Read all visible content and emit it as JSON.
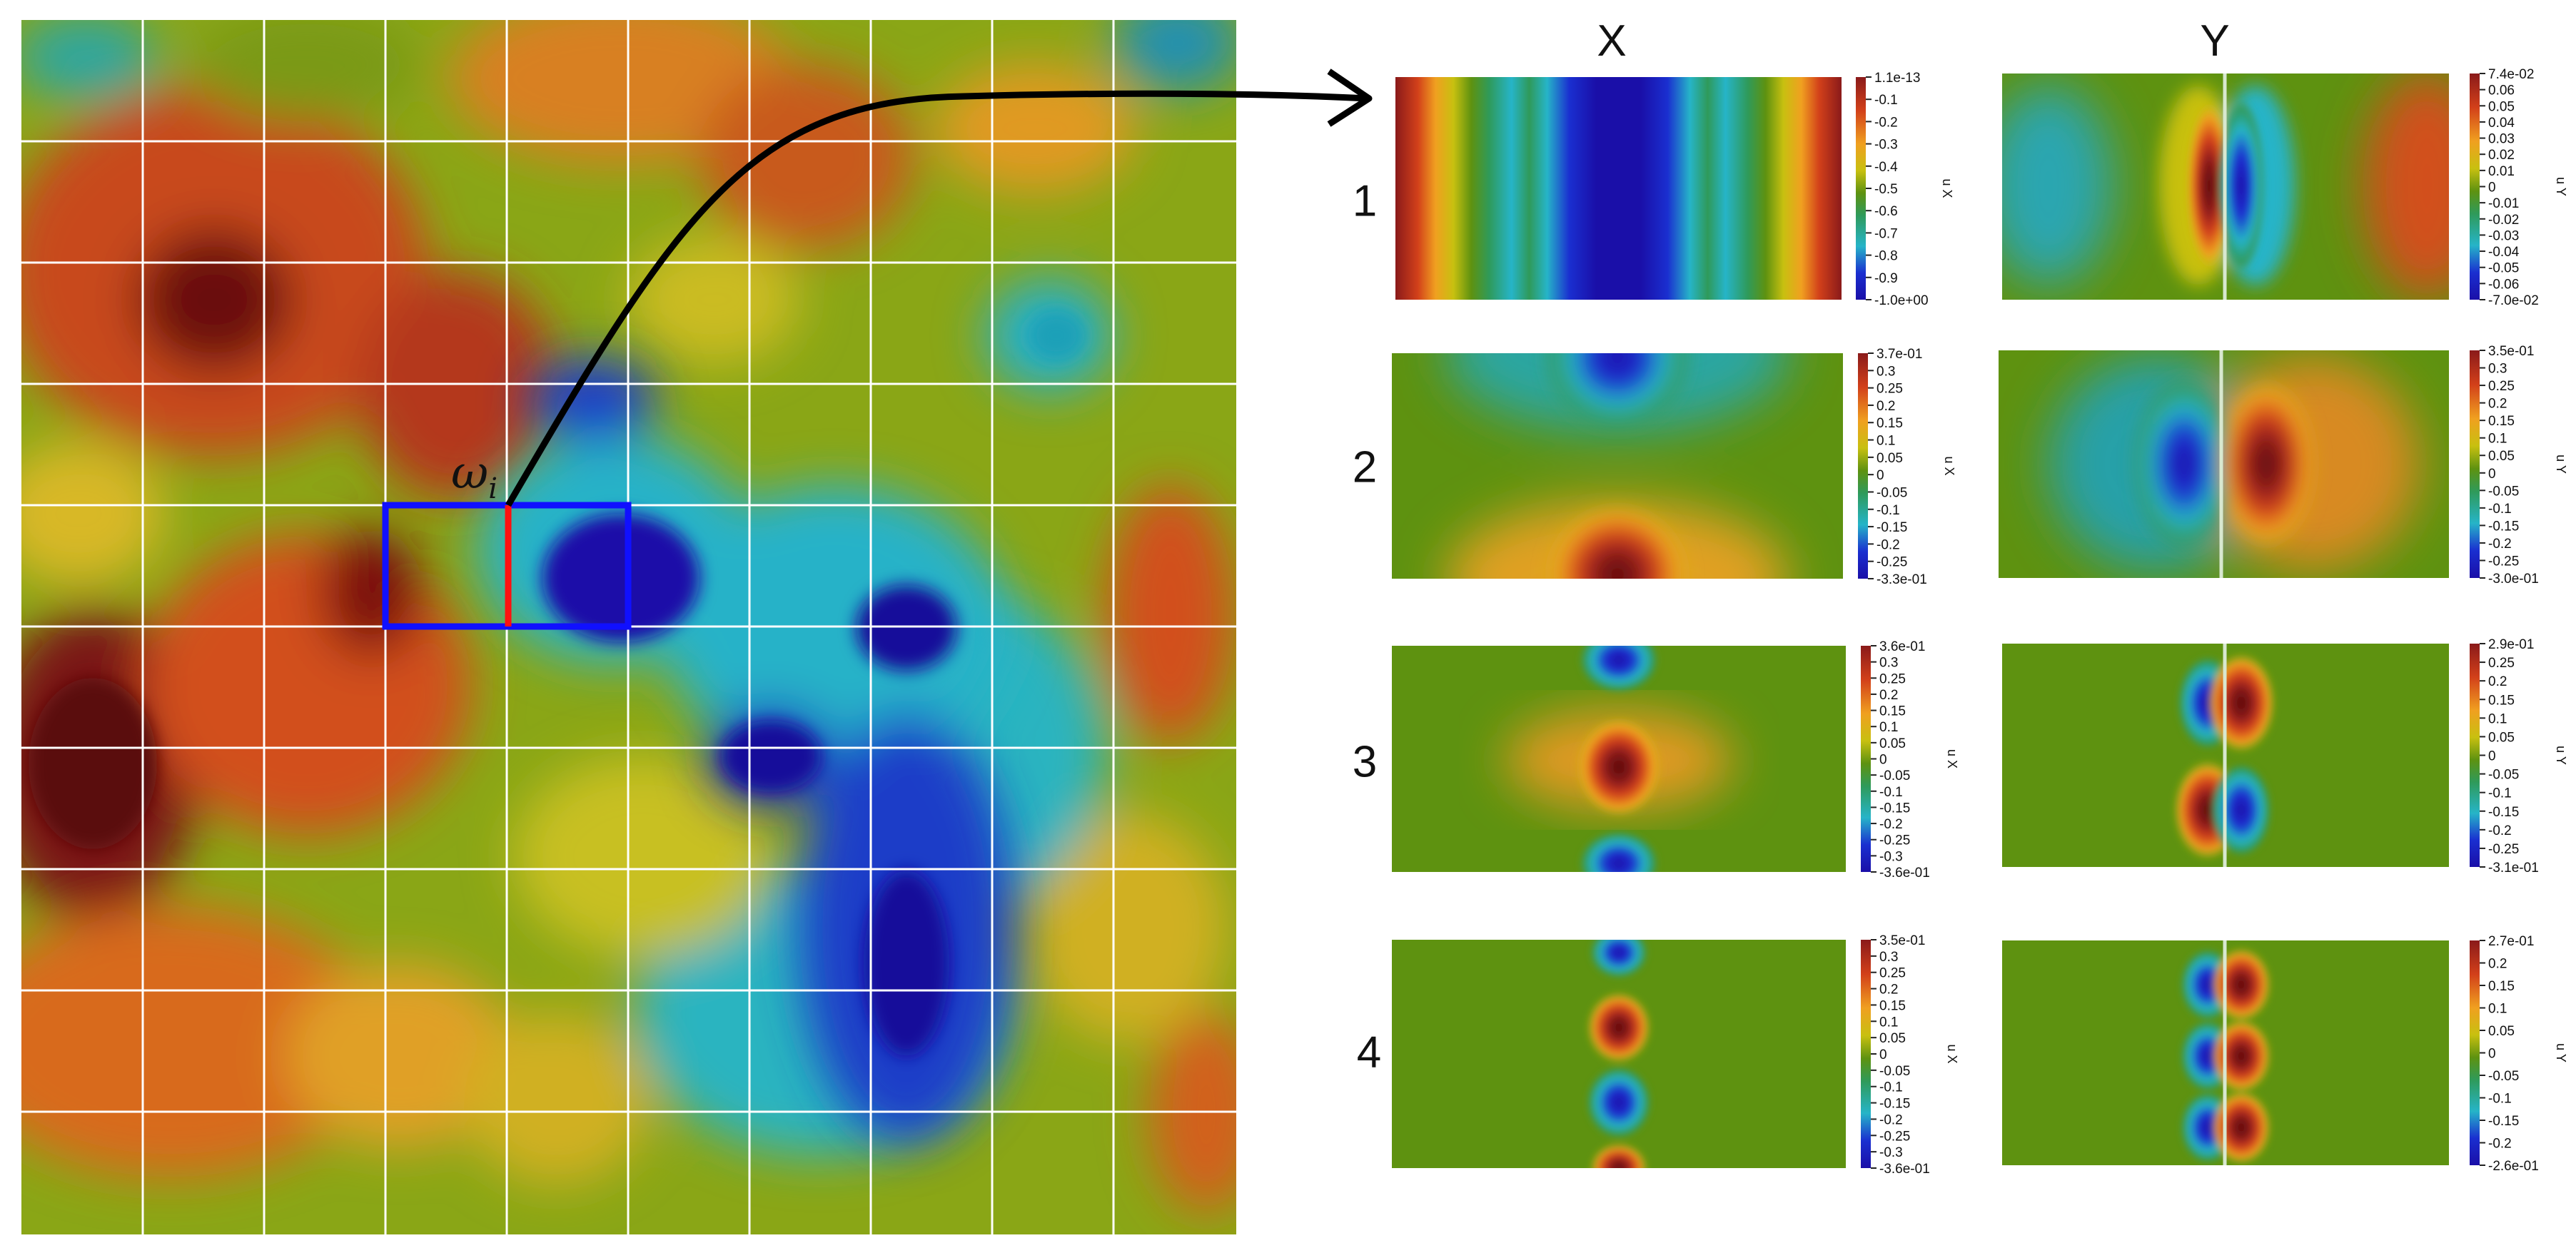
{
  "domain_label": "Diagram",
  "macro_field": {
    "grid": {
      "columns": 10,
      "rows": 10
    },
    "subdomain_label": {
      "symbol": "ω",
      "subscript": "i"
    }
  },
  "column_headers": [
    "X",
    "Y"
  ],
  "row_labels": [
    "1",
    "2",
    "3",
    "4"
  ],
  "colormap": [
    "#1a0fa8",
    "#1a2fd0",
    "#26b4c8",
    "#2f9a5a",
    "#5e9210",
    "#c8c010",
    "#f0a020",
    "#d2401a",
    "#8a1a1a",
    "#5a0a0a"
  ],
  "colorbars": [
    {
      "id": "1-x",
      "axis_title": "u X",
      "ticks": [
        "1.1e-13",
        "-0.1",
        "-0.2",
        "-0.3",
        "-0.4",
        "-0.5",
        "-0.6",
        "-0.7",
        "-0.8",
        "-0.9",
        "-1.0e+00"
      ]
    },
    {
      "id": "1-y",
      "axis_title": "u Y",
      "ticks": [
        "7.4e-02",
        "0.06",
        "0.05",
        "0.04",
        "0.03",
        "0.02",
        "0.01",
        "0",
        "-0.01",
        "-0.02",
        "-0.03",
        "-0.04",
        "-0.05",
        "-0.06",
        "-7.0e-02"
      ]
    },
    {
      "id": "2-x",
      "axis_title": "u X",
      "ticks": [
        "3.7e-01",
        "0.3",
        "0.25",
        "0.2",
        "0.15",
        "0.1",
        "0.05",
        "0",
        "-0.05",
        "-0.1",
        "-0.15",
        "-0.2",
        "-0.25",
        "-3.3e-01"
      ]
    },
    {
      "id": "2-y",
      "axis_title": "u Y",
      "ticks": [
        "3.5e-01",
        "0.3",
        "0.25",
        "0.2",
        "0.15",
        "0.1",
        "0.05",
        "0",
        "-0.05",
        "-0.1",
        "-0.15",
        "-0.2",
        "-0.25",
        "-3.0e-01"
      ]
    },
    {
      "id": "3-x",
      "axis_title": "u X",
      "ticks": [
        "3.6e-01",
        "0.3",
        "0.25",
        "0.2",
        "0.15",
        "0.1",
        "0.05",
        "0",
        "-0.05",
        "-0.1",
        "-0.15",
        "-0.2",
        "-0.25",
        "-0.3",
        "-3.6e-01"
      ]
    },
    {
      "id": "3-y",
      "axis_title": "u Y",
      "ticks": [
        "2.9e-01",
        "0.25",
        "0.2",
        "0.15",
        "0.1",
        "0.05",
        "0",
        "-0.05",
        "-0.1",
        "-0.15",
        "-0.2",
        "-0.25",
        "-3.1e-01"
      ]
    },
    {
      "id": "4-x",
      "axis_title": "u X",
      "ticks": [
        "3.5e-01",
        "0.3",
        "0.25",
        "0.2",
        "0.15",
        "0.1",
        "0.05",
        "0",
        "-0.05",
        "-0.1",
        "-0.15",
        "-0.2",
        "-0.25",
        "-0.3",
        "-3.6e-01"
      ]
    },
    {
      "id": "4-y",
      "axis_title": "u Y",
      "ticks": [
        "2.7e-01",
        "0.2",
        "0.15",
        "0.1",
        "0.05",
        "0",
        "-0.05",
        "-0.1",
        "-0.15",
        "-0.2",
        "-2.6e-01"
      ]
    }
  ]
}
